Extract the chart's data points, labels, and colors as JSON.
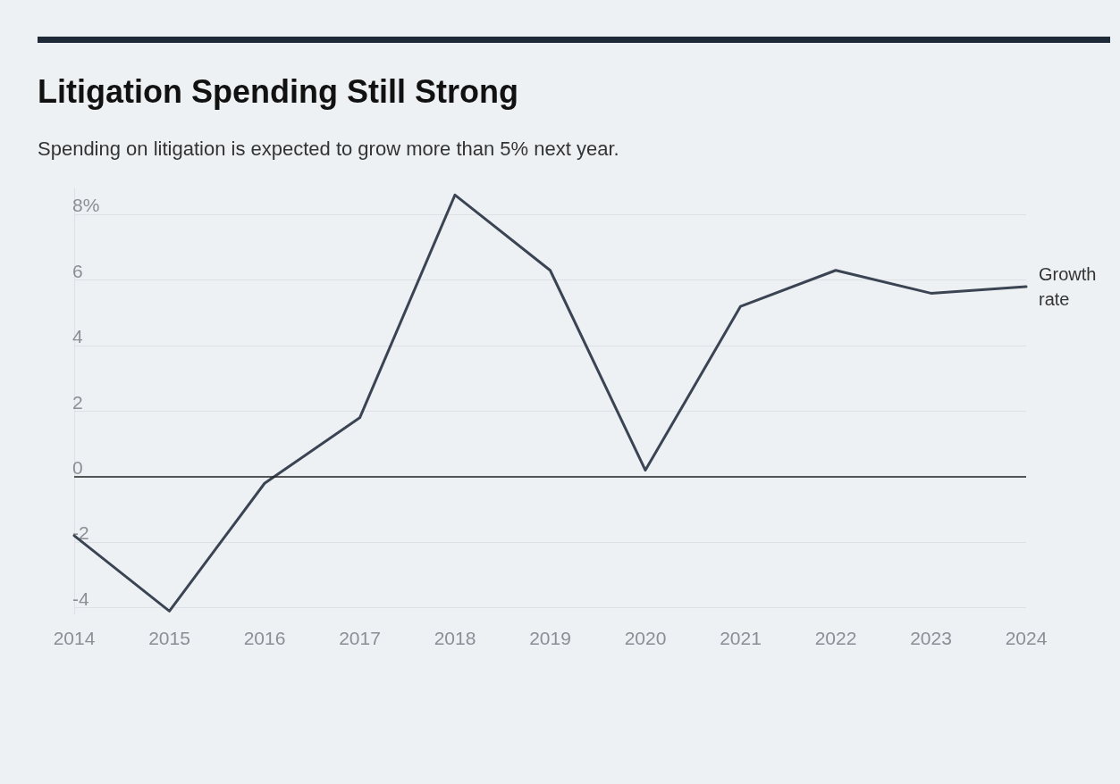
{
  "chart_data": {
    "type": "line",
    "title": "Litigation Spending Still Strong",
    "subtitle": "Spending on litigation is expected to grow more than 5% next year.",
    "categories": [
      "2014",
      "2015",
      "2016",
      "2017",
      "2018",
      "2019",
      "2020",
      "2021",
      "2022",
      "2023",
      "2024"
    ],
    "series": [
      {
        "name": "Growth rate",
        "color": "#3b4453",
        "values": [
          -1.8,
          -4.1,
          -0.2,
          1.8,
          8.6,
          6.3,
          0.2,
          5.2,
          6.3,
          5.6,
          5.8
        ]
      }
    ],
    "ylim": [
      -4.2,
      8.8
    ],
    "yticks": [
      -4,
      -2,
      0,
      2,
      4,
      {
        "value": 6,
        "label": "6"
      },
      {
        "value": 8,
        "label": "8%"
      }
    ],
    "ref_lines": [
      {
        "axis": "y",
        "value": 0,
        "color": "#222222"
      }
    ],
    "grid": "y",
    "legend": false,
    "marker": "none",
    "line_style": "solid"
  }
}
